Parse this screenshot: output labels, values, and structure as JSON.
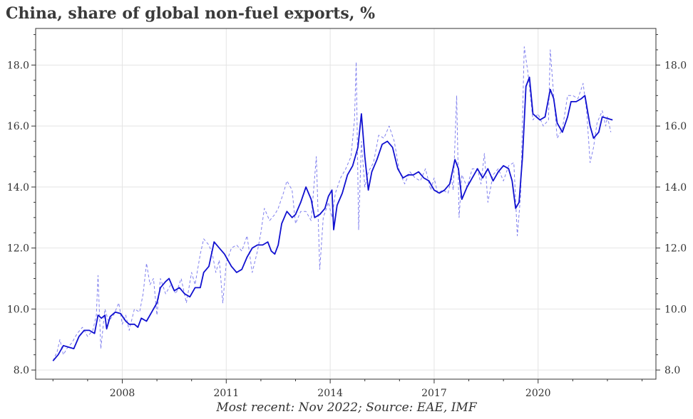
{
  "chart_data": {
    "type": "line",
    "title": "China, share of global non-fuel exports, %",
    "footer": "Most recent: Nov 2022; Source: EAE, IMF",
    "xlabel": "",
    "ylabel": "",
    "x_ticks": [
      2008,
      2011,
      2014,
      2017,
      2020
    ],
    "x_tick_labels": [
      "2008",
      "2011",
      "2014",
      "2017",
      "2020"
    ],
    "xlim": [
      2005.5,
      2023.4
    ],
    "ylim": [
      7.7,
      19.2
    ],
    "y_ticks": [
      8,
      10,
      12,
      14,
      16,
      18
    ],
    "y_tick_labels": [
      "8.0",
      "10.0",
      "12.0",
      "14.0",
      "16.0",
      "18.0"
    ],
    "y_axis_sides": "both",
    "grid": true,
    "legend": "none",
    "series": [
      {
        "style": "dashed",
        "color": "#8080ee",
        "points": [
          [
            2006.0,
            8.3
          ],
          [
            2006.12,
            8.6
          ],
          [
            2006.2,
            9.0
          ],
          [
            2006.3,
            8.5
          ],
          [
            2006.4,
            8.7
          ],
          [
            2006.55,
            8.9
          ],
          [
            2006.7,
            9.2
          ],
          [
            2006.85,
            9.4
          ],
          [
            2007.0,
            9.1
          ],
          [
            2007.15,
            9.3
          ],
          [
            2007.25,
            9.8
          ],
          [
            2007.3,
            11.1
          ],
          [
            2007.38,
            8.7
          ],
          [
            2007.5,
            10.0
          ],
          [
            2007.6,
            9.6
          ],
          [
            2007.75,
            9.8
          ],
          [
            2007.9,
            10.2
          ],
          [
            2008.0,
            9.5
          ],
          [
            2008.1,
            9.8
          ],
          [
            2008.2,
            9.3
          ],
          [
            2008.35,
            10.0
          ],
          [
            2008.5,
            9.9
          ],
          [
            2008.6,
            10.5
          ],
          [
            2008.7,
            11.5
          ],
          [
            2008.8,
            10.8
          ],
          [
            2008.9,
            11.0
          ],
          [
            2009.0,
            9.8
          ],
          [
            2009.1,
            11.0
          ],
          [
            2009.25,
            10.5
          ],
          [
            2009.4,
            10.8
          ],
          [
            2009.55,
            10.5
          ],
          [
            2009.7,
            11.0
          ],
          [
            2009.85,
            10.2
          ],
          [
            2010.0,
            11.2
          ],
          [
            2010.1,
            10.8
          ],
          [
            2010.25,
            11.8
          ],
          [
            2010.35,
            12.3
          ],
          [
            2010.5,
            12.1
          ],
          [
            2010.6,
            11.8
          ],
          [
            2010.7,
            11.2
          ],
          [
            2010.8,
            11.6
          ],
          [
            2010.9,
            10.2
          ],
          [
            2011.0,
            11.5
          ],
          [
            2011.15,
            12.0
          ],
          [
            2011.3,
            12.1
          ],
          [
            2011.45,
            11.9
          ],
          [
            2011.6,
            12.4
          ],
          [
            2011.75,
            11.2
          ],
          [
            2011.9,
            11.9
          ],
          [
            2012.0,
            12.5
          ],
          [
            2012.1,
            13.3
          ],
          [
            2012.25,
            12.9
          ],
          [
            2012.4,
            13.1
          ],
          [
            2012.5,
            13.3
          ],
          [
            2012.65,
            13.8
          ],
          [
            2012.75,
            14.2
          ],
          [
            2012.9,
            13.9
          ],
          [
            2013.0,
            12.8
          ],
          [
            2013.15,
            13.2
          ],
          [
            2013.3,
            13.2
          ],
          [
            2013.45,
            12.9
          ],
          [
            2013.6,
            15.0
          ],
          [
            2013.7,
            11.3
          ],
          [
            2013.8,
            13.0
          ],
          [
            2013.95,
            13.5
          ],
          [
            2014.05,
            13.0
          ],
          [
            2014.15,
            13.8
          ],
          [
            2014.3,
            14.3
          ],
          [
            2014.45,
            14.6
          ],
          [
            2014.6,
            15.0
          ],
          [
            2014.7,
            16.2
          ],
          [
            2014.75,
            18.1
          ],
          [
            2014.82,
            12.6
          ],
          [
            2014.9,
            15.5
          ],
          [
            2015.0,
            14.0
          ],
          [
            2015.1,
            14.5
          ],
          [
            2015.25,
            14.8
          ],
          [
            2015.4,
            15.7
          ],
          [
            2015.55,
            15.6
          ],
          [
            2015.7,
            16.0
          ],
          [
            2015.85,
            15.5
          ],
          [
            2016.0,
            14.5
          ],
          [
            2016.15,
            14.1
          ],
          [
            2016.3,
            14.5
          ],
          [
            2016.45,
            14.3
          ],
          [
            2016.6,
            14.2
          ],
          [
            2016.75,
            14.6
          ],
          [
            2016.9,
            13.9
          ],
          [
            2017.0,
            14.3
          ],
          [
            2017.1,
            13.8
          ],
          [
            2017.25,
            13.9
          ],
          [
            2017.4,
            13.8
          ],
          [
            2017.5,
            14.3
          ],
          [
            2017.55,
            13.9
          ],
          [
            2017.65,
            17.0
          ],
          [
            2017.72,
            13.0
          ],
          [
            2017.8,
            14.4
          ],
          [
            2017.95,
            14.0
          ],
          [
            2018.1,
            14.6
          ],
          [
            2018.25,
            14.6
          ],
          [
            2018.35,
            14.1
          ],
          [
            2018.45,
            15.1
          ],
          [
            2018.55,
            13.5
          ],
          [
            2018.7,
            14.4
          ],
          [
            2018.85,
            14.6
          ],
          [
            2019.0,
            14.2
          ],
          [
            2019.15,
            14.7
          ],
          [
            2019.3,
            14.8
          ],
          [
            2019.4,
            12.4
          ],
          [
            2019.5,
            13.8
          ],
          [
            2019.6,
            18.6
          ],
          [
            2019.7,
            17.8
          ],
          [
            2019.85,
            16.2
          ],
          [
            2020.0,
            16.4
          ],
          [
            2020.15,
            16.0
          ],
          [
            2020.3,
            16.2
          ],
          [
            2020.35,
            18.5
          ],
          [
            2020.45,
            17.0
          ],
          [
            2020.55,
            15.6
          ],
          [
            2020.7,
            15.9
          ],
          [
            2020.85,
            17.0
          ],
          [
            2021.0,
            17.0
          ],
          [
            2021.15,
            16.9
          ],
          [
            2021.3,
            17.4
          ],
          [
            2021.4,
            16.5
          ],
          [
            2021.5,
            14.8
          ],
          [
            2021.6,
            15.3
          ],
          [
            2021.7,
            16.1
          ],
          [
            2021.85,
            16.5
          ],
          [
            2021.95,
            16.0
          ],
          [
            2022.0,
            16.3
          ],
          [
            2022.1,
            15.8
          ]
        ]
      },
      {
        "style": "solid",
        "color": "#1010d0",
        "points": [
          [
            2006.0,
            8.3
          ],
          [
            2006.15,
            8.5
          ],
          [
            2006.3,
            8.8
          ],
          [
            2006.45,
            8.75
          ],
          [
            2006.6,
            8.7
          ],
          [
            2006.75,
            9.1
          ],
          [
            2006.9,
            9.3
          ],
          [
            2007.05,
            9.3
          ],
          [
            2007.2,
            9.2
          ],
          [
            2007.3,
            9.8
          ],
          [
            2007.4,
            9.7
          ],
          [
            2007.5,
            9.8
          ],
          [
            2007.55,
            9.35
          ],
          [
            2007.65,
            9.75
          ],
          [
            2007.8,
            9.9
          ],
          [
            2007.95,
            9.85
          ],
          [
            2008.1,
            9.6
          ],
          [
            2008.2,
            9.5
          ],
          [
            2008.35,
            9.5
          ],
          [
            2008.45,
            9.4
          ],
          [
            2008.55,
            9.7
          ],
          [
            2008.7,
            9.6
          ],
          [
            2008.85,
            9.9
          ],
          [
            2009.0,
            10.2
          ],
          [
            2009.1,
            10.7
          ],
          [
            2009.25,
            10.9
          ],
          [
            2009.35,
            11.0
          ],
          [
            2009.5,
            10.6
          ],
          [
            2009.65,
            10.7
          ],
          [
            2009.8,
            10.5
          ],
          [
            2009.95,
            10.4
          ],
          [
            2010.1,
            10.7
          ],
          [
            2010.25,
            10.7
          ],
          [
            2010.35,
            11.2
          ],
          [
            2010.5,
            11.4
          ],
          [
            2010.65,
            12.2
          ],
          [
            2010.8,
            12.0
          ],
          [
            2010.95,
            11.8
          ],
          [
            2011.05,
            11.6
          ],
          [
            2011.15,
            11.4
          ],
          [
            2011.3,
            11.2
          ],
          [
            2011.45,
            11.3
          ],
          [
            2011.6,
            11.7
          ],
          [
            2011.75,
            12.0
          ],
          [
            2011.9,
            12.1
          ],
          [
            2012.05,
            12.1
          ],
          [
            2012.2,
            12.2
          ],
          [
            2012.3,
            11.9
          ],
          [
            2012.4,
            11.8
          ],
          [
            2012.5,
            12.1
          ],
          [
            2012.6,
            12.8
          ],
          [
            2012.75,
            13.2
          ],
          [
            2012.9,
            13.0
          ],
          [
            2013.0,
            13.1
          ],
          [
            2013.15,
            13.5
          ],
          [
            2013.3,
            14.0
          ],
          [
            2013.45,
            13.6
          ],
          [
            2013.55,
            13.0
          ],
          [
            2013.7,
            13.1
          ],
          [
            2013.85,
            13.3
          ],
          [
            2013.95,
            13.7
          ],
          [
            2014.05,
            13.9
          ],
          [
            2014.1,
            12.6
          ],
          [
            2014.2,
            13.4
          ],
          [
            2014.35,
            13.8
          ],
          [
            2014.5,
            14.4
          ],
          [
            2014.65,
            14.7
          ],
          [
            2014.8,
            15.3
          ],
          [
            2014.9,
            16.4
          ],
          [
            2015.0,
            15.0
          ],
          [
            2015.1,
            13.9
          ],
          [
            2015.2,
            14.5
          ],
          [
            2015.35,
            14.9
          ],
          [
            2015.5,
            15.4
          ],
          [
            2015.65,
            15.5
          ],
          [
            2015.8,
            15.3
          ],
          [
            2015.95,
            14.6
          ],
          [
            2016.1,
            14.3
          ],
          [
            2016.25,
            14.4
          ],
          [
            2016.4,
            14.4
          ],
          [
            2016.55,
            14.5
          ],
          [
            2016.7,
            14.3
          ],
          [
            2016.85,
            14.2
          ],
          [
            2017.0,
            13.9
          ],
          [
            2017.15,
            13.8
          ],
          [
            2017.3,
            13.9
          ],
          [
            2017.45,
            14.1
          ],
          [
            2017.6,
            14.9
          ],
          [
            2017.7,
            14.6
          ],
          [
            2017.8,
            13.6
          ],
          [
            2017.95,
            14.0
          ],
          [
            2018.1,
            14.3
          ],
          [
            2018.25,
            14.6
          ],
          [
            2018.4,
            14.3
          ],
          [
            2018.55,
            14.6
          ],
          [
            2018.7,
            14.2
          ],
          [
            2018.85,
            14.5
          ],
          [
            2019.0,
            14.7
          ],
          [
            2019.15,
            14.6
          ],
          [
            2019.25,
            14.2
          ],
          [
            2019.35,
            13.3
          ],
          [
            2019.45,
            13.5
          ],
          [
            2019.55,
            15.0
          ],
          [
            2019.65,
            17.3
          ],
          [
            2019.75,
            17.6
          ],
          [
            2019.85,
            16.4
          ],
          [
            2019.95,
            16.3
          ],
          [
            2020.05,
            16.2
          ],
          [
            2020.2,
            16.3
          ],
          [
            2020.35,
            17.2
          ],
          [
            2020.45,
            16.9
          ],
          [
            2020.55,
            16.1
          ],
          [
            2020.7,
            15.8
          ],
          [
            2020.85,
            16.3
          ],
          [
            2020.95,
            16.8
          ],
          [
            2021.1,
            16.8
          ],
          [
            2021.25,
            16.9
          ],
          [
            2021.35,
            17.0
          ],
          [
            2021.5,
            16.0
          ],
          [
            2021.6,
            15.6
          ],
          [
            2021.75,
            15.8
          ],
          [
            2021.85,
            16.3
          ],
          [
            2022.0,
            16.25
          ],
          [
            2022.15,
            16.2
          ]
        ]
      }
    ]
  }
}
